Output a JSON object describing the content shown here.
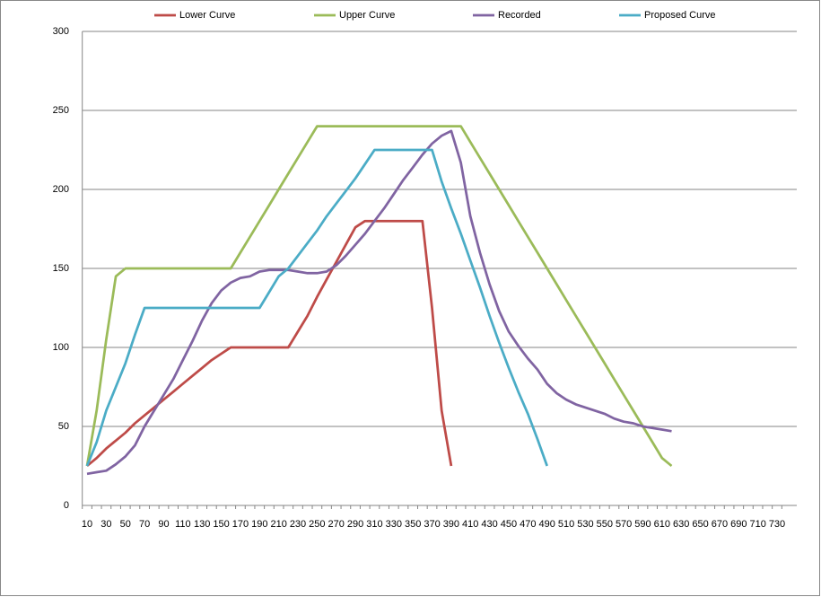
{
  "chart_data": {
    "type": "line",
    "categories": [
      10,
      null,
      30,
      null,
      50,
      null,
      70,
      null,
      90,
      null,
      110,
      null,
      130,
      null,
      150,
      null,
      170,
      null,
      190,
      null,
      210,
      null,
      230,
      null,
      250,
      null,
      270,
      null,
      290,
      null,
      310,
      null,
      330,
      null,
      350,
      null,
      370,
      null,
      390,
      null,
      410,
      null,
      430,
      null,
      450,
      null,
      470,
      null,
      490,
      null,
      510,
      null,
      530,
      null,
      550,
      null,
      570,
      null,
      590,
      null,
      610,
      null,
      630,
      null,
      650,
      null,
      670,
      null,
      690,
      null,
      710,
      null,
      730,
      null
    ],
    "series": [
      {
        "name": "Lower Curve",
        "color": "#be4b48",
        "values": [
          25,
          30,
          36,
          41,
          46,
          52,
          57,
          62,
          67,
          72,
          77,
          82,
          87,
          92,
          96,
          100,
          100,
          100,
          100,
          100,
          100,
          100,
          110,
          120,
          132,
          143,
          154,
          165,
          176,
          180,
          180,
          180,
          180,
          180,
          180,
          180,
          125,
          60,
          25,
          null,
          null,
          null,
          null,
          null,
          null,
          null,
          null,
          null,
          null,
          null,
          null,
          null,
          null,
          null,
          null,
          null,
          null,
          null,
          null,
          null,
          null,
          null,
          null,
          null,
          null,
          null,
          null,
          null,
          null,
          null,
          null,
          null,
          null,
          null
        ]
      },
      {
        "name": "Upper Curve",
        "color": "#9bbb59",
        "values": [
          25,
          60,
          105,
          145,
          150,
          150,
          150,
          150,
          150,
          150,
          150,
          150,
          150,
          150,
          150,
          150,
          160,
          170,
          180,
          190,
          200,
          210,
          220,
          230,
          240,
          240,
          240,
          240,
          240,
          240,
          240,
          240,
          240,
          240,
          240,
          240,
          240,
          240,
          240,
          240,
          230,
          220,
          210,
          200,
          190,
          180,
          170,
          160,
          150,
          140,
          130,
          120,
          110,
          100,
          90,
          80,
          70,
          60,
          50,
          40,
          30,
          25,
          null,
          null,
          null,
          null,
          null,
          null,
          null,
          null,
          null,
          null,
          null,
          null
        ]
      },
      {
        "name": "Recorded",
        "color": "#8064a2",
        "values": [
          20,
          21,
          22,
          26,
          31,
          38,
          50,
          60,
          70,
          80,
          92,
          104,
          117,
          128,
          136,
          141,
          144,
          145,
          148,
          149,
          149,
          149,
          148,
          147,
          147,
          148,
          152,
          158,
          165,
          172,
          180,
          188,
          197,
          206,
          214,
          222,
          229,
          234,
          237,
          217,
          183,
          160,
          140,
          123,
          110,
          101,
          93,
          86,
          77,
          71,
          67,
          64,
          62,
          60,
          58,
          55,
          53,
          52,
          50,
          49,
          48,
          47,
          null,
          null,
          null,
          null,
          null,
          null,
          null,
          null,
          null,
          null,
          null,
          null
        ]
      },
      {
        "name": "Proposed Curve",
        "color": "#4bacc6",
        "values": [
          25,
          40,
          60,
          75,
          90,
          108,
          125,
          125,
          125,
          125,
          125,
          125,
          125,
          125,
          125,
          125,
          125,
          125,
          125,
          135,
          145,
          150,
          158,
          166,
          174,
          183,
          191,
          199,
          207,
          216,
          225,
          225,
          225,
          225,
          225,
          225,
          225,
          205,
          188,
          172,
          155,
          138,
          120,
          103,
          87,
          72,
          58,
          42,
          25,
          null,
          null,
          null,
          null,
          null,
          null,
          null,
          null,
          null,
          null,
          null,
          null,
          null,
          null,
          null,
          null,
          null,
          null,
          null,
          null,
          null,
          null,
          null,
          null,
          null
        ]
      }
    ],
    "ylim": [
      0,
      300
    ],
    "yticks": [
      0,
      50,
      100,
      150,
      200,
      250,
      300
    ],
    "grid": true,
    "legend": "top"
  }
}
